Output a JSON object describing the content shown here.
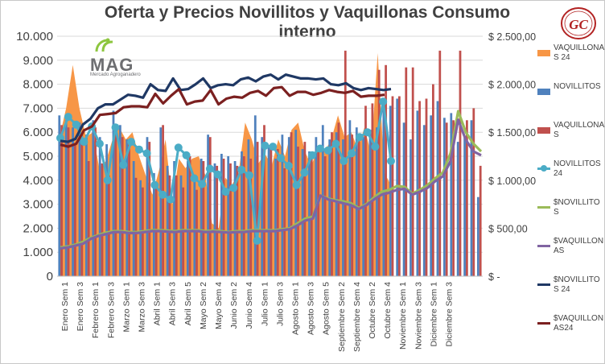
{
  "chart_data": {
    "type": "bar",
    "title": "Oferta y Precios Novillitos y Vaquillonas Consumo interno",
    "left_axis": {
      "ylim": [
        0,
        10000
      ],
      "ticks": [
        "0",
        "1.000",
        "2.000",
        "3.000",
        "4.000",
        "5.000",
        "6.000",
        "7.000",
        "8.000",
        "9.000",
        "10.000"
      ]
    },
    "right_axis": {
      "ylim": [
        0,
        2500
      ],
      "ticks": [
        "$ -",
        "$ 500,00",
        "$ 1.000,00",
        "$ 1.500,00",
        "$ 2.000,00",
        "$ 2.500,00"
      ]
    },
    "x_tick_labels": [
      "Enero Sem 1",
      "Enero Sem 3",
      "Febrero Sem 1",
      "Febrero Sem 3",
      "Marzo Sem 1",
      "Marzo Sem 3",
      "Abril Sem 1",
      "Abril Sem 3",
      "Abril Sem 5",
      "Mayo Sem 2",
      "Mayo Sem 4",
      "Junio Sem 2",
      "Junio Sem 4",
      "Julio Sem 1",
      "Julio Sem 3",
      "Agosto Sem 1",
      "Agosto Sem 3",
      "Agosto Sem 5",
      "Septiembre Sem 2",
      "Septiembre Sem 4",
      "Octubre Sem 2",
      "Octubre Sem 4",
      "Noviembre Sem 1",
      "Noviembre Sem 3",
      "Diciembre Sem 1",
      "Diciembre Sem 3"
    ],
    "grid": true,
    "legend_placement": "right",
    "series": [
      {
        "name": "VAQUILLONAS 24",
        "type": "area",
        "axis": "left",
        "color": "#f79646",
        "values": [
          5800,
          7000,
          8800,
          7000,
          5800,
          6000,
          4500,
          4800,
          5700,
          6200,
          5700,
          6000,
          5000,
          4200,
          3400,
          4400,
          5700,
          3000,
          4900,
          4500,
          4900,
          5000,
          4200,
          2200,
          2000,
          4100,
          3800,
          4300,
          6400,
          5700,
          4700,
          5100,
          4600,
          5700,
          5000,
          6100,
          6400,
          5200,
          4600,
          5400,
          5200,
          5700,
          6700,
          5800,
          6000,
          5300,
          6200,
          5100,
          9300,
          4300,
          3800
        ]
      },
      {
        "name": "NOVILLITOS",
        "type": "bar",
        "axis": "left",
        "color": "#4f81bd",
        "values": [
          6700,
          6500,
          6200,
          6400,
          5900,
          6500,
          5800,
          5500,
          6900,
          6300,
          5700,
          4800,
          4000,
          5800,
          4300,
          6200,
          4600,
          4800,
          4200,
          4800,
          4000,
          4900,
          5900,
          4700,
          5100,
          5000,
          4800,
          5200,
          5700,
          6700,
          5800,
          5400,
          4900,
          5900,
          5800,
          6100,
          5300,
          5200,
          5800,
          6300,
          5700,
          6000,
          5700,
          6500,
          6200,
          5800,
          6100,
          6200,
          7000,
          7100,
          7400,
          6400,
          5700,
          6900,
          6300,
          6700,
          7300,
          6600,
          6800,
          5600,
          5800,
          6500,
          3300
        ]
      },
      {
        "name": "VAQUILLONAS",
        "type": "bar",
        "axis": "left",
        "color": "#c0504d",
        "values": [
          6300,
          6200,
          5500,
          5900,
          4800,
          6200,
          4700,
          4200,
          6300,
          5800,
          5700,
          4100,
          3700,
          5600,
          3900,
          6300,
          4200,
          4200,
          3700,
          5000,
          3600,
          4800,
          5800,
          4600,
          4900,
          4700,
          4600,
          5000,
          4900,
          5600,
          6300,
          5400,
          5300,
          4500,
          6000,
          5400,
          5600,
          5100,
          5400,
          5000,
          6000,
          6400,
          9400,
          5900,
          5700,
          7100,
          7200,
          8600,
          8800,
          7500,
          7500,
          8700,
          8700,
          7300,
          7400,
          8000,
          9400,
          6400,
          6500,
          9400,
          6500,
          7000,
          4600
        ]
      },
      {
        "name": "NOVILLITOS 24",
        "type": "line-markers",
        "axis": "right",
        "color": "#4bacc6",
        "values": [
          1440,
          1660,
          1580,
          1400,
          1560,
          1380,
          1000,
          1550,
          1160,
          1400,
          1320,
          1280,
          950,
          850,
          800,
          1340,
          1260,
          1020,
          960,
          1120,
          1060,
          880,
          920,
          1110,
          1050,
          370,
          1360,
          1350,
          1230,
          1150,
          950,
          1080,
          1260,
          1330,
          1310,
          1380,
          1200,
          1280,
          1450,
          1500,
          1350,
          1820,
          1200
        ]
      },
      {
        "name": "$NOVILLITOS",
        "type": "line",
        "axis": "right",
        "color": "#9bbb59",
        "values": [
          300,
          310,
          330,
          360,
          400,
          430,
          455,
          470,
          470,
          460,
          460,
          470,
          480,
          480,
          475,
          470,
          480,
          480,
          480,
          470,
          475,
          470,
          460,
          470,
          470,
          480,
          480,
          480,
          480,
          490,
          500,
          550,
          600,
          620,
          840,
          810,
          790,
          780,
          760,
          710,
          750,
          820,
          880,
          900,
          940,
          930,
          860,
          900,
          950,
          1020,
          1080,
          1280,
          1720,
          1500,
          1380,
          1300
        ]
      },
      {
        "name": "$VAQUILLONAS",
        "type": "line",
        "axis": "right",
        "color": "#8064a2",
        "values": [
          290,
          300,
          320,
          340,
          390,
          420,
          440,
          460,
          460,
          450,
          450,
          460,
          470,
          470,
          465,
          460,
          470,
          470,
          470,
          460,
          465,
          460,
          455,
          460,
          460,
          470,
          470,
          470,
          470,
          480,
          490,
          530,
          580,
          600,
          840,
          800,
          780,
          760,
          740,
          700,
          740,
          800,
          850,
          870,
          900,
          910,
          850,
          880,
          920,
          990,
          1040,
          1200,
          1630,
          1420,
          1300,
          1260
        ]
      },
      {
        "name": "$NOVILLITOS 24",
        "type": "line",
        "axis": "right",
        "color": "#1f3864",
        "values": [
          1410,
          1400,
          1430,
          1580,
          1640,
          1750,
          1790,
          1790,
          1840,
          1890,
          1880,
          1860,
          2000,
          1940,
          1930,
          2060,
          1940,
          1950,
          2000,
          2060,
          1960,
          1990,
          2000,
          1990,
          2050,
          2070,
          2030,
          2080,
          2100,
          2050,
          2100,
          2080,
          2060,
          2060,
          2050,
          2060,
          2000,
          1990,
          2010,
          1960,
          1940,
          1960,
          1950,
          1940,
          1950
        ]
      },
      {
        "name": "$VAQUILLONAS24",
        "type": "line",
        "axis": "right",
        "color": "#7b2020",
        "values": [
          1370,
          1350,
          1380,
          1520,
          1560,
          1680,
          1690,
          1700,
          1760,
          1770,
          1770,
          1760,
          1900,
          1800,
          1880,
          1950,
          1790,
          1820,
          1830,
          1940,
          1790,
          1850,
          1870,
          1860,
          1910,
          1930,
          1880,
          1960,
          1970,
          1880,
          1920,
          1920,
          1890,
          1910,
          1940,
          1920,
          1910,
          1930,
          1870,
          1880,
          1880,
          1890
        ]
      }
    ]
  },
  "legend_labels": [
    "VAQUILLONAS 24",
    "NOVILLITOS",
    "VAQUILLONAS",
    "NOVILLITOS 24",
    "$NOVILLITOS",
    "$VAQUILLONAS",
    "$NOVILLITOS 24",
    "$VAQUILLONAS24"
  ],
  "logos": {
    "mag_text": "MAG",
    "mag_sub": "Mercado Agroganadero",
    "gc_text": "GC"
  }
}
